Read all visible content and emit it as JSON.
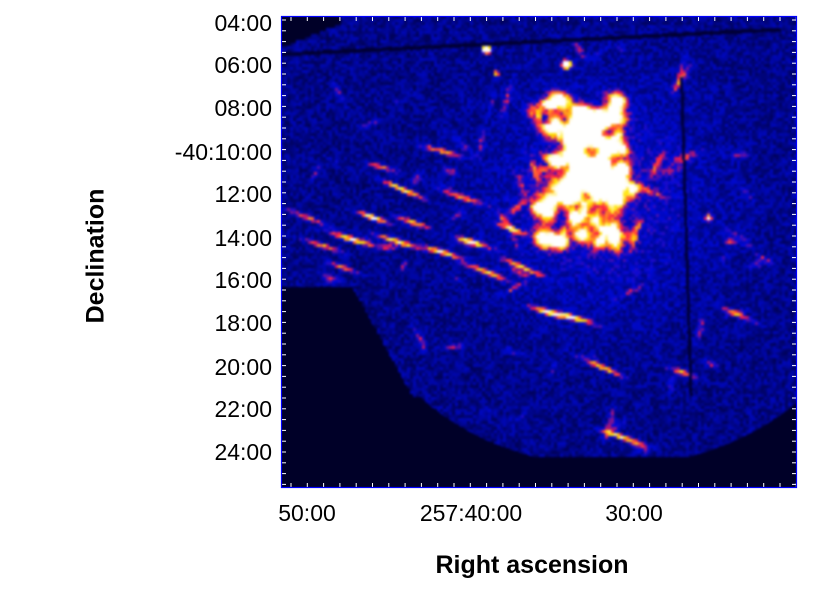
{
  "figure": {
    "x_axis_title": "Right ascension",
    "y_axis_title": "Declination",
    "x_tick_labels": [
      {
        "text": "50:00",
        "value_arcmin": 50
      },
      {
        "text": "257:40:00",
        "value_arcmin": 40
      },
      {
        "text": "30:00",
        "value_arcmin": 30
      }
    ],
    "y_tick_labels": [
      {
        "text": "04:00",
        "value_arcmin": 4
      },
      {
        "text": "06:00",
        "value_arcmin": 6
      },
      {
        "text": "08:00",
        "value_arcmin": 8
      },
      {
        "text": "-40:10:00",
        "value_arcmin": 10
      },
      {
        "text": "12:00",
        "value_arcmin": 12
      },
      {
        "text": "14:00",
        "value_arcmin": 14
      },
      {
        "text": "16:00",
        "value_arcmin": 16
      },
      {
        "text": "18:00",
        "value_arcmin": 18
      },
      {
        "text": "20:00",
        "value_arcmin": 20
      },
      {
        "text": "22:00",
        "value_arcmin": 22
      },
      {
        "text": "24:00",
        "value_arcmin": 24
      }
    ],
    "colormap": "black-blue-red-yellow-white",
    "frame_color": "#0000ff",
    "colors": {
      "background": "#000000",
      "low": "#000a8c",
      "mid": "#ff2a00",
      "high": "#ffe600",
      "peak": "#ffffff"
    }
  }
}
